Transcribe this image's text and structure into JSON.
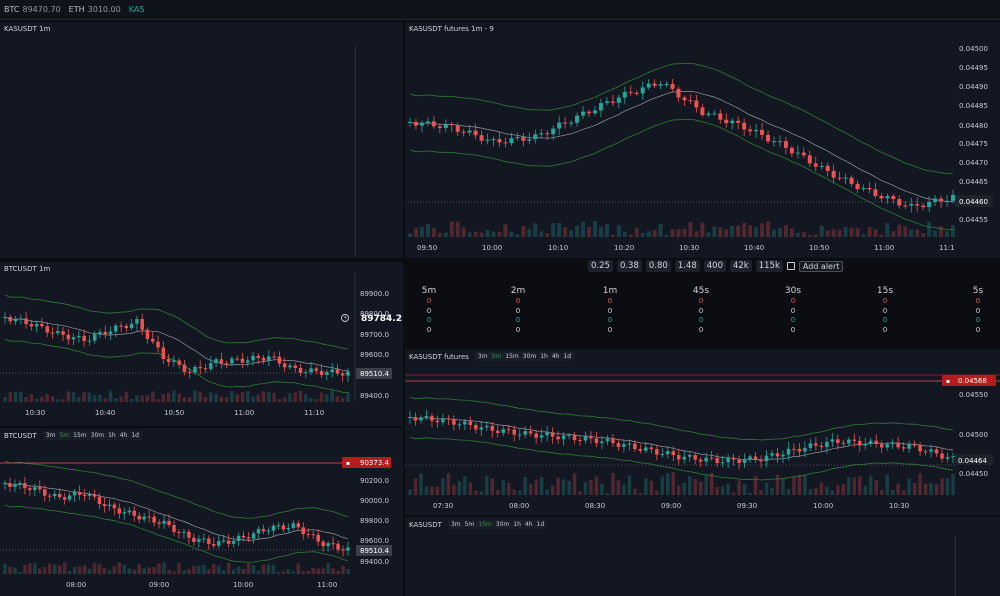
{
  "topbar": {
    "tickers": [
      {
        "sym": "BTC",
        "val": "89470.70"
      },
      {
        "sym": "ETH",
        "val": "3010.00"
      },
      {
        "sym": "KAS",
        "val": ""
      }
    ]
  },
  "panels": {
    "kas_empty": {
      "title": "KASUSDT 1m"
    },
    "kas_futures9": {
      "title": "KASUSDT futures 1m - 9",
      "yticks": [
        "0.04500",
        "0.04495",
        "0.04490",
        "0.04485",
        "0.04480",
        "0.04475",
        "0.04470",
        "0.04465",
        "0.04460",
        "0.04455"
      ],
      "last_price": "0.04460",
      "xticks": [
        "09:50",
        "10:00",
        "10:10",
        "10:20",
        "10:30",
        "10:40",
        "10:50",
        "11:00",
        "11:1"
      ]
    },
    "btc1m": {
      "title": "BTCUSDT 1m",
      "yticks": [
        "89900.0",
        "89800.0",
        "89700.0",
        "89600.0",
        "89500.0",
        "89400.0"
      ],
      "last_price": "89510.4",
      "alert_price": "89784.2",
      "xticks": [
        "10:30",
        "10:40",
        "10:50",
        "11:00",
        "11:10"
      ]
    },
    "btc_tf": {
      "title": "BTCUSDT",
      "timeframes": [
        "3m",
        "5m",
        "15m",
        "30m",
        "1h",
        "4h",
        "1d"
      ],
      "selected": "5m",
      "yticks": [
        "90200.0",
        "90000.0",
        "89800.0",
        "89600.0",
        "89400.0"
      ],
      "alert_price": "90373.4",
      "last_price": "89510.4",
      "xticks": [
        "08:00",
        "09:00",
        "10:00",
        "11:00"
      ]
    },
    "kas_futures_tf": {
      "title": "KASUSDT futures",
      "timeframes": [
        "3m",
        "5m",
        "15m",
        "30m",
        "1h",
        "4h",
        "1d"
      ],
      "selected": "5m",
      "yticks": [
        "0.04550",
        "0.04500",
        "0.04450"
      ],
      "alert_price": "0.04568",
      "last_price": "0.04464",
      "xticks": [
        "07:30",
        "08:00",
        "08:30",
        "09:00",
        "09:30",
        "10:00",
        "10:30"
      ]
    },
    "kas_tf": {
      "title": "KASUSDT",
      "timeframes": [
        "3m",
        "5m",
        "15m",
        "30m",
        "1h",
        "4h",
        "1d"
      ],
      "selected": "15m"
    }
  },
  "stats": {
    "values": [
      "0.25",
      "0.38",
      "0.80",
      "1.48",
      "400",
      "42k",
      "115k"
    ],
    "add_alert": "Add alert"
  },
  "tf_table": {
    "columns": [
      {
        "h": "5m",
        "cells": [
          "0",
          "0",
          "0",
          "0"
        ]
      },
      {
        "h": "2m",
        "cells": [
          "0",
          "0",
          "0",
          "0"
        ]
      },
      {
        "h": "1m",
        "cells": [
          "0",
          "0",
          "0",
          "0"
        ]
      },
      {
        "h": "45s",
        "cells": [
          "0",
          "0",
          "0",
          "0"
        ]
      },
      {
        "h": "30s",
        "cells": [
          "0",
          "0",
          "0",
          "0"
        ]
      },
      {
        "h": "15s",
        "cells": [
          "0",
          "0",
          "0",
          "0"
        ]
      },
      {
        "h": "5s",
        "cells": [
          "0",
          "0",
          "0",
          "0"
        ]
      }
    ],
    "row_colors": [
      "#ef5350",
      "#d1d4dc",
      "#26a69a",
      "#d1d4dc"
    ]
  },
  "colors": {
    "up": "#26a69a",
    "down": "#ef5350",
    "band": "#2e7d32",
    "mid": "#9598a1",
    "bg": "#131722"
  }
}
